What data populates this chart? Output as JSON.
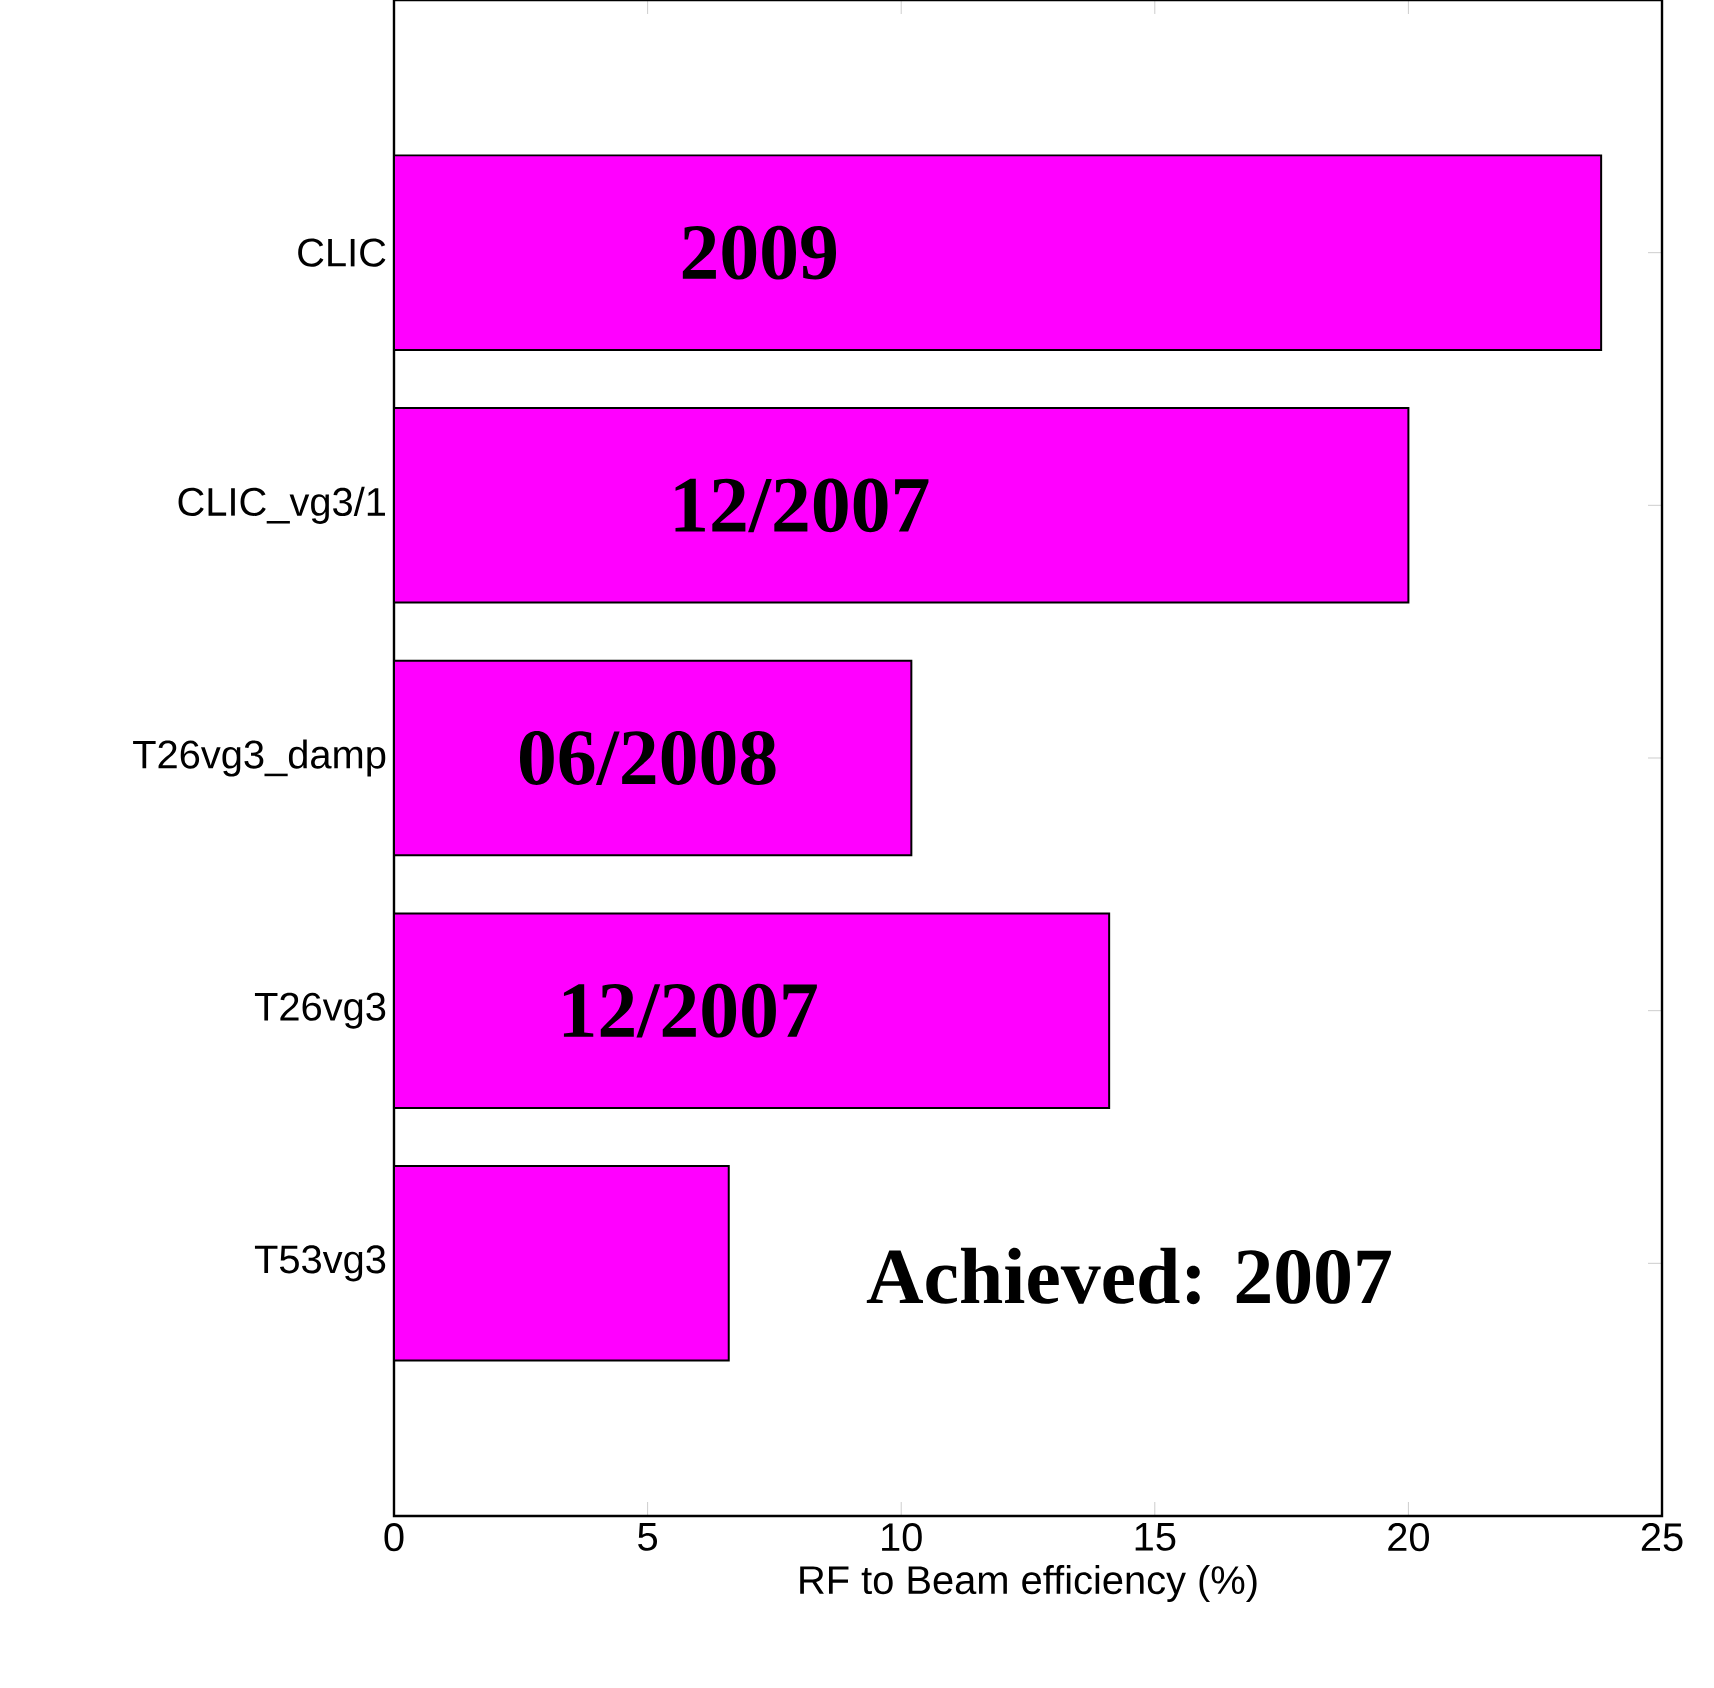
{
  "chart_data": {
    "type": "bar",
    "orientation": "horizontal",
    "xlabel": "RF to Beam efficiency (%)",
    "categories": [
      "CLIC",
      "CLIC_vg3/1",
      "T26vg3_damp",
      "T26vg3",
      "T53vg3"
    ],
    "values": [
      23.8,
      20,
      10.2,
      14.1,
      6.6
    ],
    "color": "#ff00ff",
    "xlim": [
      0,
      25
    ],
    "xticks": [
      0,
      5,
      10,
      15,
      20,
      25
    ],
    "annotations": [
      {
        "text": "2009",
        "x": 7.2,
        "y": "CLIC"
      },
      {
        "text": "12/2007",
        "x": 8.0,
        "y": "CLIC_vg3/1"
      },
      {
        "text": "06/2008",
        "x": 5.0,
        "y": "T26vg3_damp"
      },
      {
        "text": "12/2007",
        "x": 5.8,
        "y": "T26vg3"
      },
      "Achieved: 2007"
    ]
  }
}
